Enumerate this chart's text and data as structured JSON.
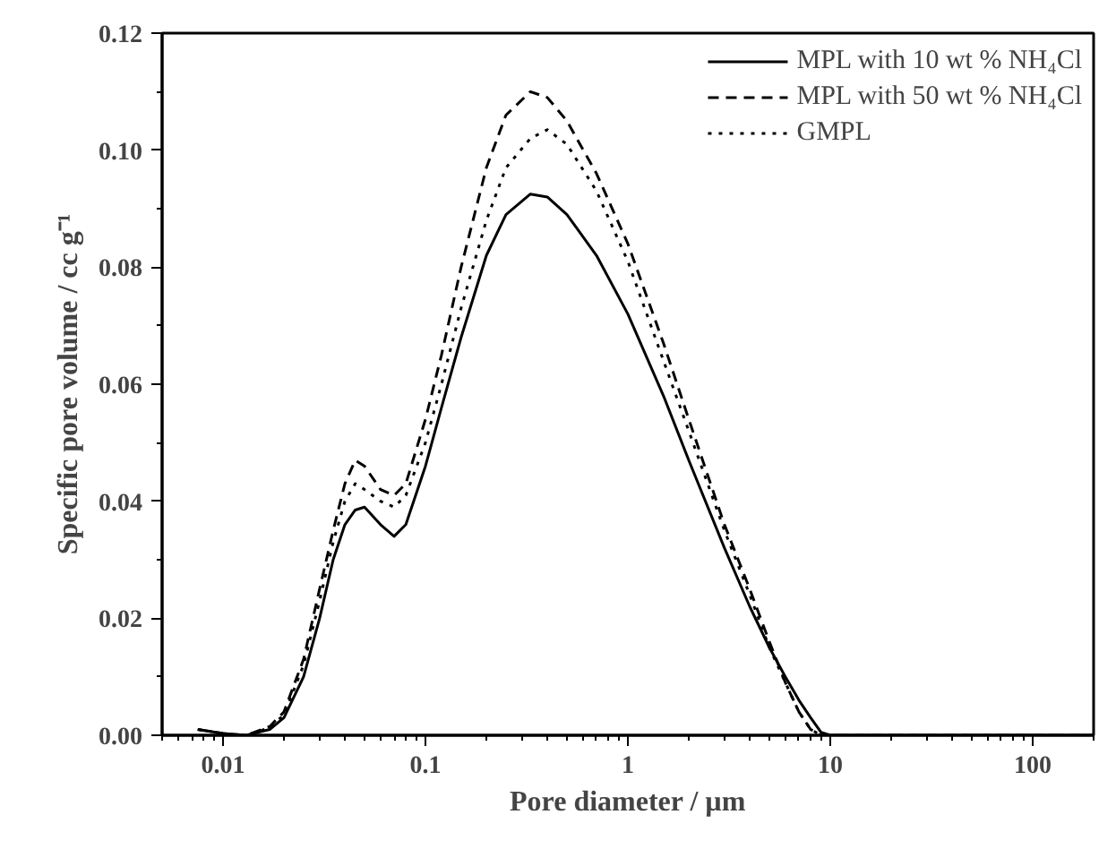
{
  "chart_data": {
    "type": "line",
    "xlabel": "Pore diameter / µm",
    "ylabel": "Specific pore volume / cc g⁻¹",
    "log": "x",
    "xlim": [
      0.005,
      200
    ],
    "xticks": [
      0.01,
      0.1,
      1,
      10,
      100
    ],
    "ylim": [
      0,
      0.12
    ],
    "yticks": [
      {
        "value": 0,
        "label": "0.00"
      },
      {
        "value": 0.02,
        "label": "0.02"
      },
      {
        "value": 0.04,
        "label": "0.04"
      },
      {
        "value": 0.06,
        "label": "0.06"
      },
      {
        "value": 0.08,
        "label": "0.08"
      },
      {
        "value": 0.1,
        "label": "0.10"
      },
      {
        "value": 0.12,
        "label": "0.12"
      }
    ],
    "grid": false,
    "legend": "top right",
    "x": [
      0.0075,
      0.01,
      0.013,
      0.017,
      0.02,
      0.025,
      0.03,
      0.035,
      0.04,
      0.045,
      0.05,
      0.06,
      0.07,
      0.08,
      0.1,
      0.12,
      0.15,
      0.2,
      0.25,
      0.33,
      0.4,
      0.5,
      0.7,
      1,
      1.5,
      2,
      3,
      4,
      5,
      6,
      7,
      8,
      9,
      10,
      200
    ],
    "series": [
      {
        "name": "MPL with 10 wt % NH₄Cl",
        "color": "#000000",
        "line_style": "solid",
        "values": [
          0.001,
          0.0003,
          0,
          0.001,
          0.003,
          0.01,
          0.02,
          0.03,
          0.036,
          0.0385,
          0.039,
          0.036,
          0.034,
          0.036,
          0.046,
          0.056,
          0.068,
          0.082,
          0.089,
          0.0925,
          0.092,
          0.089,
          0.082,
          0.072,
          0.058,
          0.047,
          0.032,
          0.022,
          0.015,
          0.01,
          0.006,
          0.003,
          0.0005,
          0,
          0
        ]
      },
      {
        "name": "MPL with 50 wt % NH₄Cl",
        "color": "#000000",
        "line_style": "dashed",
        "values": [
          0.001,
          0.0003,
          0,
          0.0015,
          0.004,
          0.013,
          0.025,
          0.035,
          0.043,
          0.047,
          0.046,
          0.042,
          0.041,
          0.043,
          0.054,
          0.065,
          0.08,
          0.097,
          0.106,
          0.11,
          0.109,
          0.105,
          0.096,
          0.084,
          0.067,
          0.054,
          0.036,
          0.025,
          0.016,
          0.009,
          0.004,
          0.001,
          0,
          0,
          0
        ]
      },
      {
        "name": "GMPL",
        "color": "#000000",
        "line_style": "dotted",
        "values": [
          0.001,
          0.0003,
          0,
          0.0013,
          0.0035,
          0.012,
          0.023,
          0.033,
          0.04,
          0.043,
          0.042,
          0.04,
          0.039,
          0.041,
          0.05,
          0.06,
          0.073,
          0.088,
          0.097,
          0.102,
          0.1035,
          0.101,
          0.093,
          0.081,
          0.064,
          0.052,
          0.035,
          0.024,
          0.015,
          0.009,
          0.004,
          0.001,
          0,
          0,
          0
        ]
      }
    ]
  }
}
